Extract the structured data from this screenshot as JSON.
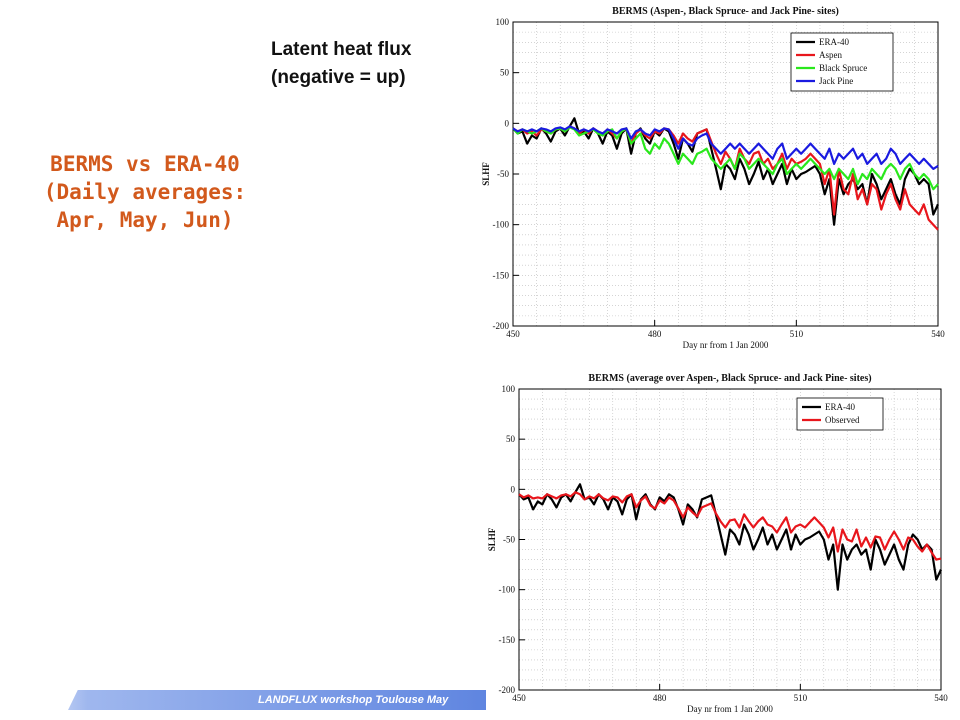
{
  "slide": {
    "title_lines": [
      "BERMS vs ERA-40",
      "(Daily averages:",
      "Apr, May, Jun)"
    ],
    "note_lines": [
      "Latent heat flux",
      "(negative = up)"
    ],
    "footer": "LANDFLUX workshop Toulouse May"
  },
  "colors": {
    "title": "#d2591c",
    "era40": "#000000",
    "aspen": "#e8161c",
    "black_spruce": "#2ae81c",
    "jack_pine": "#1a1ae0",
    "observed": "#e8161c"
  },
  "chart_data": [
    {
      "type": "line",
      "title": "BERMS (Aspen-, Black Spruce- and Jack Pine- sites)",
      "xlabel": "Day nr from 1 Jan 2000",
      "ylabel": "SLHF",
      "xlim": [
        450,
        540
      ],
      "ylim": [
        -200,
        100
      ],
      "xticks": [
        450,
        480,
        510,
        540
      ],
      "yticks": [
        100,
        50,
        0,
        -50,
        -100,
        -150,
        -200
      ],
      "grid": true,
      "legend": "top-right",
      "x_start": 450,
      "x_end": 540,
      "series": [
        {
          "name": "ERA-40",
          "color": "#000000",
          "values": [
            -5,
            -10,
            -8,
            -20,
            -12,
            -15,
            -5,
            -10,
            -18,
            -8,
            -5,
            -12,
            -3,
            5,
            -10,
            -8,
            -15,
            -5,
            -10,
            -20,
            -8,
            -12,
            -25,
            -10,
            -5,
            -30,
            -10,
            -5,
            -15,
            -20,
            -8,
            -12,
            -5,
            -8,
            -20,
            -35,
            -15,
            -20,
            -28,
            -10,
            -8,
            -6,
            -25,
            -45,
            -65,
            -40,
            -45,
            -55,
            -35,
            -45,
            -60,
            -50,
            -38,
            -55,
            -45,
            -60,
            -50,
            -40,
            -60,
            -45,
            -55,
            -50,
            -48,
            -45,
            -42,
            -50,
            -70,
            -55,
            -100,
            -55,
            -70,
            -60,
            -55,
            -65,
            -60,
            -80,
            -50,
            -60,
            -75,
            -65,
            -55,
            -70,
            -80,
            -55,
            -45,
            -50,
            -60,
            -55,
            -60,
            -90,
            -80
          ]
        },
        {
          "name": "Aspen",
          "color": "#e8161c",
          "values": [
            -5,
            -8,
            -6,
            -10,
            -8,
            -12,
            -6,
            -8,
            -10,
            -6,
            -5,
            -8,
            -3,
            -5,
            -10,
            -6,
            -10,
            -5,
            -8,
            -12,
            -6,
            -10,
            -15,
            -8,
            -5,
            -20,
            -10,
            -6,
            -12,
            -15,
            -8,
            -10,
            -5,
            -6,
            -12,
            -20,
            -10,
            -15,
            -18,
            -10,
            -8,
            -6,
            -18,
            -30,
            -40,
            -28,
            -35,
            -45,
            -25,
            -35,
            -40,
            -30,
            -28,
            -40,
            -35,
            -45,
            -40,
            -30,
            -45,
            -35,
            -40,
            -38,
            -35,
            -30,
            -35,
            -40,
            -60,
            -45,
            -90,
            -45,
            -65,
            -70,
            -50,
            -75,
            -65,
            -80,
            -60,
            -65,
            -85,
            -70,
            -60,
            -75,
            -85,
            -65,
            -80,
            -85,
            -90,
            -80,
            -95,
            -100,
            -105
          ]
        },
        {
          "name": "Black Spruce",
          "color": "#2ae81c",
          "values": [
            -5,
            -10,
            -6,
            -8,
            -10,
            -8,
            -5,
            -8,
            -10,
            -6,
            -5,
            -8,
            -4,
            -6,
            -12,
            -10,
            -8,
            -6,
            -10,
            -12,
            -8,
            -6,
            -15,
            -8,
            -5,
            -20,
            -15,
            -10,
            -25,
            -30,
            -20,
            -25,
            -15,
            -20,
            -30,
            -40,
            -30,
            -35,
            -40,
            -30,
            -28,
            -25,
            -35,
            -40,
            -45,
            -40,
            -35,
            -45,
            -30,
            -35,
            -45,
            -40,
            -35,
            -40,
            -45,
            -50,
            -40,
            -35,
            -50,
            -45,
            -40,
            -45,
            -40,
            -35,
            -40,
            -45,
            -50,
            -45,
            -55,
            -45,
            -50,
            -55,
            -45,
            -60,
            -50,
            -55,
            -45,
            -50,
            -55,
            -45,
            -40,
            -45,
            -55,
            -45,
            -40,
            -50,
            -55,
            -50,
            -55,
            -65,
            -60
          ]
        },
        {
          "name": "Jack Pine",
          "color": "#1a1ae0",
          "values": [
            -5,
            -8,
            -6,
            -8,
            -6,
            -8,
            -5,
            -6,
            -8,
            -5,
            -4,
            -6,
            -3,
            -5,
            -8,
            -6,
            -8,
            -5,
            -8,
            -10,
            -6,
            -8,
            -10,
            -6,
            -5,
            -15,
            -8,
            -6,
            -10,
            -12,
            -6,
            -8,
            -5,
            -6,
            -15,
            -25,
            -15,
            -20,
            -22,
            -15,
            -12,
            -10,
            -20,
            -25,
            -30,
            -25,
            -20,
            -25,
            -20,
            -25,
            -30,
            -25,
            -20,
            -25,
            -30,
            -35,
            -25,
            -20,
            -35,
            -30,
            -25,
            -30,
            -25,
            -20,
            -25,
            -30,
            -35,
            -25,
            -40,
            -30,
            -35,
            -30,
            -25,
            -35,
            -30,
            -40,
            -35,
            -30,
            -40,
            -35,
            -25,
            -30,
            -40,
            -35,
            -30,
            -35,
            -40,
            -35,
            -40,
            -45,
            -42
          ]
        }
      ]
    },
    {
      "type": "line",
      "title": "BERMS (average over Aspen-, Black Spruce- and Jack Pine- sites)",
      "xlabel": "Day nr from 1 Jan 2000",
      "ylabel": "SLHF",
      "xlim": [
        450,
        540
      ],
      "ylim": [
        -200,
        100
      ],
      "xticks": [
        450,
        480,
        510,
        540
      ],
      "yticks": [
        100,
        50,
        0,
        -50,
        -100,
        -150,
        -200
      ],
      "grid": true,
      "legend": "top-right",
      "x_start": 450,
      "x_end": 540,
      "series": [
        {
          "name": "ERA-40",
          "color": "#000000",
          "values": [
            -5,
            -10,
            -8,
            -20,
            -12,
            -15,
            -5,
            -10,
            -18,
            -8,
            -5,
            -12,
            -3,
            5,
            -10,
            -8,
            -15,
            -5,
            -10,
            -20,
            -8,
            -12,
            -25,
            -10,
            -5,
            -30,
            -10,
            -5,
            -15,
            -20,
            -8,
            -12,
            -5,
            -8,
            -20,
            -35,
            -15,
            -20,
            -28,
            -10,
            -8,
            -6,
            -25,
            -45,
            -65,
            -40,
            -45,
            -55,
            -35,
            -45,
            -60,
            -50,
            -38,
            -55,
            -45,
            -60,
            -50,
            -40,
            -60,
            -45,
            -55,
            -50,
            -48,
            -45,
            -42,
            -50,
            -70,
            -55,
            -100,
            -55,
            -70,
            -60,
            -55,
            -65,
            -60,
            -80,
            -50,
            -60,
            -75,
            -65,
            -55,
            -70,
            -80,
            -55,
            -45,
            -50,
            -60,
            -55,
            -60,
            -90,
            -80
          ]
        },
        {
          "name": "Observed",
          "color": "#e8161c",
          "values": [
            -5,
            -8,
            -6,
            -9,
            -8,
            -9,
            -5,
            -7,
            -9,
            -6,
            -5,
            -7,
            -3,
            -5,
            -10,
            -7,
            -9,
            -5,
            -9,
            -11,
            -7,
            -8,
            -13,
            -7,
            -5,
            -18,
            -11,
            -7,
            -16,
            -19,
            -11,
            -14,
            -8,
            -11,
            -19,
            -28,
            -18,
            -23,
            -27,
            -18,
            -16,
            -14,
            -24,
            -32,
            -38,
            -31,
            -30,
            -38,
            -25,
            -32,
            -38,
            -32,
            -28,
            -35,
            -37,
            -43,
            -35,
            -28,
            -43,
            -37,
            -35,
            -38,
            -33,
            -28,
            -33,
            -38,
            -48,
            -38,
            -62,
            -40,
            -50,
            -52,
            -40,
            -57,
            -48,
            -58,
            -47,
            -48,
            -60,
            -50,
            -42,
            -50,
            -60,
            -48,
            -50,
            -57,
            -62,
            -55,
            -63,
            -70,
            -69
          ]
        }
      ]
    }
  ]
}
